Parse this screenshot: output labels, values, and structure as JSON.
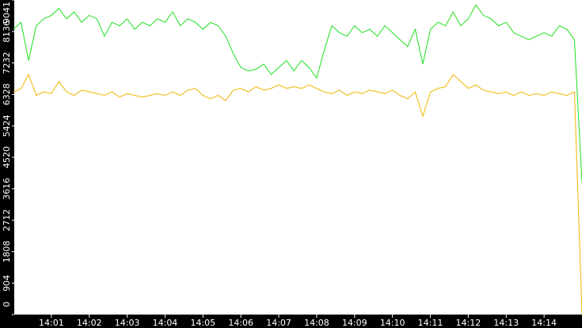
{
  "chart_data": {
    "type": "line",
    "x": [
      0,
      0.2,
      0.4,
      0.6,
      0.8,
      1,
      1.2,
      1.4,
      1.6,
      1.8,
      2,
      2.2,
      2.4,
      2.6,
      2.8,
      3,
      3.2,
      3.4,
      3.6,
      3.8,
      4,
      4.2,
      4.4,
      4.6,
      4.8,
      5,
      5.2,
      5.4,
      5.6,
      5.8,
      6,
      6.2,
      6.4,
      6.6,
      6.8,
      7,
      7.2,
      7.4,
      7.6,
      7.8,
      8,
      8.2,
      8.4,
      8.6,
      8.8,
      9,
      9.2,
      9.4,
      9.6,
      9.8,
      10,
      10.2,
      10.4,
      10.6,
      10.8,
      11,
      11.2,
      11.4,
      11.6,
      11.8,
      12,
      12.2,
      12.4,
      12.6,
      12.8,
      13,
      13.2,
      13.4,
      13.6,
      13.8,
      14,
      14.2,
      14.4,
      14.6,
      14.8,
      15
    ],
    "series": [
      {
        "color": "#1fe01f",
        "values": [
          8200,
          8400,
          7300,
          8300,
          8500,
          8600,
          8800,
          8500,
          8700,
          8400,
          8600,
          8500,
          8000,
          8400,
          8300,
          8500,
          8200,
          8400,
          8300,
          8500,
          8400,
          8700,
          8300,
          8500,
          8400,
          8200,
          8400,
          8300,
          8000,
          7500,
          7100,
          7000,
          7050,
          7200,
          6900,
          7100,
          7300,
          7000,
          7300,
          7100,
          6800,
          7600,
          8300,
          8100,
          8000,
          8300,
          8100,
          8200,
          8000,
          8300,
          8100,
          7900,
          7700,
          8200,
          7200,
          8200,
          8400,
          8300,
          8700,
          8300,
          8500,
          8900,
          8600,
          8500,
          8300,
          8400,
          8100,
          8000,
          7900,
          8000,
          8100,
          8000,
          8300,
          8200,
          7900,
          3800
        ]
      },
      {
        "color": "#f0b400",
        "values": [
          6400,
          6500,
          6900,
          6300,
          6400,
          6350,
          6700,
          6400,
          6300,
          6450,
          6400,
          6350,
          6300,
          6400,
          6250,
          6350,
          6300,
          6250,
          6300,
          6350,
          6300,
          6400,
          6300,
          6450,
          6500,
          6300,
          6200,
          6300,
          6150,
          6450,
          6500,
          6400,
          6550,
          6450,
          6500,
          6600,
          6500,
          6550,
          6500,
          6600,
          6500,
          6400,
          6350,
          6450,
          6300,
          6400,
          6350,
          6450,
          6400,
          6350,
          6450,
          6300,
          6200,
          6400,
          5700,
          6400,
          6500,
          6550,
          6900,
          6700,
          6500,
          6600,
          6450,
          6400,
          6350,
          6400,
          6300,
          6400,
          6300,
          6350,
          6300,
          6400,
          6350,
          6300,
          6400,
          0
        ]
      }
    ],
    "xlim": [
      0,
      15
    ],
    "xticks": [
      {
        "value": 1,
        "label": "14:01"
      },
      {
        "value": 2,
        "label": "14:02"
      },
      {
        "value": 3,
        "label": "14:03"
      },
      {
        "value": 4,
        "label": "14:04"
      },
      {
        "value": 5,
        "label": "14:05"
      },
      {
        "value": 6,
        "label": "14:06"
      },
      {
        "value": 7,
        "label": "14:07"
      },
      {
        "value": 8,
        "label": "14:08"
      },
      {
        "value": 9,
        "label": "14:09"
      },
      {
        "value": 10,
        "label": "14:10"
      },
      {
        "value": 11,
        "label": "14:11"
      },
      {
        "value": 12,
        "label": "14:12"
      },
      {
        "value": 13,
        "label": "14:13"
      },
      {
        "value": 14,
        "label": "14:14"
      }
    ],
    "ylim": [
      0,
      9041
    ],
    "yticks": [
      0,
      904,
      1808,
      2712,
      3616,
      4520,
      5424,
      6328,
      7232,
      8136,
      9041
    ]
  }
}
